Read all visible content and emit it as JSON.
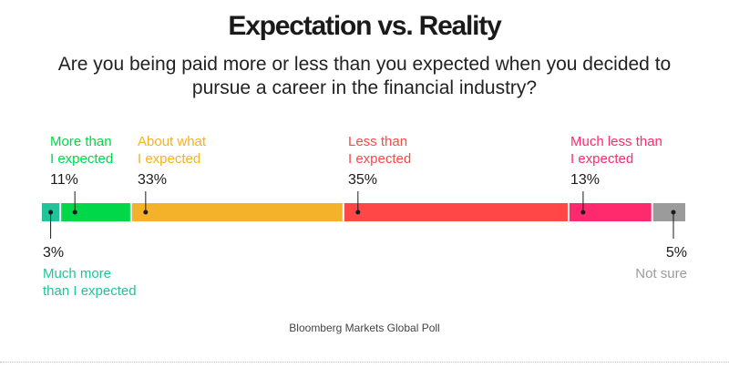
{
  "title": "Expectation vs. Reality",
  "subtitle": "Are you being paid more or less than you expected when you decided to pursue a career in the financial industry?",
  "source": "Bloomberg Markets Global Poll",
  "chart_data": {
    "type": "bar",
    "orientation": "horizontal-stacked",
    "unit": "%",
    "categories": [
      {
        "label": "Much more than I expected",
        "value": 3,
        "color": "#21c49a"
      },
      {
        "label": "More than I expected",
        "value": 11,
        "color": "#00d84a"
      },
      {
        "label": "About what I expected",
        "value": 33,
        "color": "#f4b12a"
      },
      {
        "label": "Less than I expected",
        "value": 35,
        "color": "#ff4747"
      },
      {
        "label": "Much less than I expected",
        "value": 13,
        "color": "#ff2a6e"
      },
      {
        "label": "Not sure",
        "value": 5,
        "color": "#9b9b9b"
      }
    ],
    "labels": {
      "above": [
        {
          "line1": "More than",
          "line2": "I expected",
          "pct": "11%"
        },
        {
          "line1": "About what",
          "line2": "I expected",
          "pct": "33%"
        },
        {
          "line1": "Less than",
          "line2": "I expected",
          "pct": "35%"
        },
        {
          "line1": "Much less than",
          "line2": "I expected",
          "pct": "13%"
        }
      ],
      "below": [
        {
          "pct": "3%",
          "line1": "Much more",
          "line2": "than I expected"
        },
        {
          "pct": "5%",
          "line1": "Not sure",
          "line2": ""
        }
      ]
    }
  }
}
